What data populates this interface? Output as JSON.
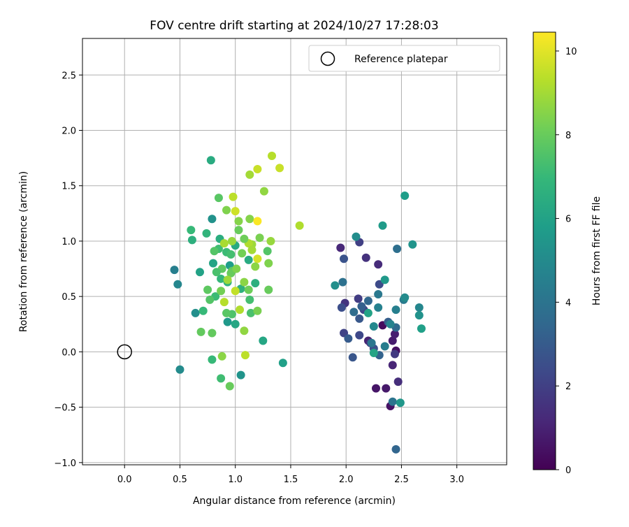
{
  "chart_data": {
    "type": "scatter",
    "title": "FOV centre drift starting at 2024/10/27 17:28:03",
    "xlabel": "Angular distance from reference (arcmin)",
    "ylabel": "Rotation from reference (arcmin)",
    "xlim": [
      -0.38,
      3.45
    ],
    "ylim": [
      -1.02,
      2.83
    ],
    "xticks": [
      0.0,
      0.5,
      1.0,
      1.5,
      2.0,
      2.5,
      3.0
    ],
    "xtick_labels": [
      "0.0",
      "0.5",
      "1.0",
      "1.5",
      "2.0",
      "2.5",
      "3.0"
    ],
    "yticks": [
      -1.0,
      -0.5,
      0.0,
      0.5,
      1.0,
      1.5,
      2.0,
      2.5
    ],
    "ytick_labels": [
      "−1.0",
      "−0.5",
      "0.0",
      "0.5",
      "1.0",
      "1.5",
      "2.0",
      "2.5"
    ],
    "grid": true,
    "legend": {
      "placement": "top-right",
      "entries": [
        "Reference platepar"
      ]
    },
    "reference_point": {
      "x": 0.0,
      "y": 0.0,
      "marker": "open-circle"
    },
    "colorbar": {
      "label": "Hours from first FF file",
      "range": [
        0,
        10.45
      ],
      "ticks": [
        0,
        2,
        4,
        6,
        8,
        10
      ],
      "tick_labels": [
        "0",
        "2",
        "4",
        "6",
        "8",
        "10"
      ],
      "colormap": "viridis",
      "stops": [
        "#440154",
        "#482878",
        "#3e4989",
        "#31688e",
        "#26828e",
        "#1f9e89",
        "#35b779",
        "#6ece58",
        "#b5de2b",
        "#fde725"
      ]
    },
    "series": [
      {
        "points": [
          [
            2.33,
            0.24,
            0.3
          ],
          [
            2.45,
            0.01,
            0.4
          ],
          [
            2.4,
            -0.49,
            0.5
          ],
          [
            2.27,
            -0.33,
            0.6
          ],
          [
            2.36,
            -0.33,
            0.7
          ],
          [
            2.42,
            0.1,
            0.8
          ],
          [
            2.44,
            0.16,
            0.9
          ],
          [
            2.2,
            0.1,
            1.0
          ],
          [
            2.42,
            -0.12,
            1.1
          ],
          [
            1.95,
            0.94,
            1.2
          ],
          [
            2.29,
            0.79,
            1.3
          ],
          [
            2.47,
            -0.27,
            1.4
          ],
          [
            2.18,
            0.85,
            1.5
          ],
          [
            1.99,
            0.44,
            1.6
          ],
          [
            2.22,
            0.08,
            1.7
          ],
          [
            2.44,
            -0.02,
            1.8
          ],
          [
            2.11,
            0.48,
            1.9
          ],
          [
            2.12,
            0.99,
            2.0
          ],
          [
            1.98,
            0.17,
            2.1
          ],
          [
            2.16,
            0.38,
            2.2
          ],
          [
            2.12,
            0.15,
            2.3
          ],
          [
            2.3,
            0.61,
            2.4
          ],
          [
            1.96,
            0.4,
            2.5
          ],
          [
            2.25,
            0.03,
            2.6
          ],
          [
            1.98,
            0.84,
            2.7
          ],
          [
            2.06,
            -0.05,
            2.8
          ],
          [
            2.12,
            0.3,
            2.9
          ],
          [
            2.02,
            0.12,
            3.0
          ],
          [
            2.38,
            0.27,
            3.1
          ],
          [
            2.14,
            0.41,
            3.2
          ],
          [
            2.3,
            -0.03,
            3.3
          ],
          [
            2.45,
            -0.88,
            3.4
          ],
          [
            2.2,
            0.46,
            3.5
          ],
          [
            2.45,
            0.22,
            3.6
          ],
          [
            2.07,
            0.36,
            3.7
          ],
          [
            2.46,
            0.93,
            3.8
          ],
          [
            1.97,
            0.63,
            3.9
          ],
          [
            2.42,
            -0.45,
            4.0
          ],
          [
            2.23,
            0.08,
            4.1
          ],
          [
            2.29,
            0.52,
            4.2
          ],
          [
            2.52,
            0.47,
            4.3
          ],
          [
            2.35,
            0.05,
            4.4
          ],
          [
            2.45,
            0.38,
            4.5
          ],
          [
            2.29,
            0.4,
            4.6
          ],
          [
            2.4,
            0.25,
            4.7
          ],
          [
            2.66,
            0.4,
            4.8
          ],
          [
            2.25,
            0.23,
            4.9
          ],
          [
            2.53,
            0.49,
            5.0
          ],
          [
            2.09,
            1.04,
            5.1
          ],
          [
            1.9,
            0.6,
            5.2
          ],
          [
            2.66,
            0.33,
            5.3
          ],
          [
            2.6,
            0.97,
            5.4
          ],
          [
            2.49,
            -0.46,
            5.5
          ],
          [
            2.35,
            0.65,
            5.6
          ],
          [
            2.33,
            1.14,
            5.7
          ],
          [
            2.53,
            1.41,
            5.8
          ],
          [
            2.68,
            0.21,
            5.9
          ],
          [
            2.2,
            0.35,
            6.0
          ],
          [
            2.25,
            -0.01,
            6.1
          ],
          [
            0.45,
            0.74,
            4.5
          ],
          [
            0.5,
            -0.16,
            5.0
          ],
          [
            0.48,
            0.61,
            4.8
          ],
          [
            0.64,
            0.35,
            5.2
          ],
          [
            1.05,
            -0.21,
            5.4
          ],
          [
            1.43,
            -0.1,
            5.9
          ],
          [
            0.93,
            0.27,
            5.6
          ],
          [
            1.25,
            0.1,
            6.2
          ],
          [
            0.79,
            1.2,
            5.3
          ],
          [
            0.95,
            0.78,
            5.8
          ],
          [
            0.78,
            1.73,
            6.4
          ],
          [
            0.61,
            1.01,
            6.6
          ],
          [
            0.68,
            0.72,
            6.0
          ],
          [
            0.74,
            1.07,
            6.8
          ],
          [
            1.0,
            0.96,
            6.3
          ],
          [
            0.86,
            1.02,
            6.5
          ],
          [
            0.71,
            0.37,
            7.0
          ],
          [
            0.8,
            0.8,
            6.1
          ],
          [
            1.12,
            0.83,
            6.4
          ],
          [
            1.18,
            0.62,
            6.6
          ],
          [
            1.0,
            0.25,
            6.2
          ],
          [
            0.87,
            0.66,
            6.9
          ],
          [
            1.05,
            0.57,
            6.7
          ],
          [
            0.93,
            0.63,
            6.8
          ],
          [
            0.6,
            1.1,
            7.0
          ],
          [
            0.85,
            0.93,
            7.2
          ],
          [
            0.92,
            0.9,
            7.1
          ],
          [
            0.79,
            -0.07,
            7.0
          ],
          [
            0.87,
            -0.24,
            7.2
          ],
          [
            1.13,
            0.47,
            7.3
          ],
          [
            0.82,
            0.5,
            7.1
          ],
          [
            1.14,
            0.35,
            7.4
          ],
          [
            0.96,
            0.88,
            7.3
          ],
          [
            0.97,
            0.34,
            7.5
          ],
          [
            0.81,
            0.91,
            7.6
          ],
          [
            0.85,
            1.39,
            7.7
          ],
          [
            0.77,
            0.47,
            7.6
          ],
          [
            0.75,
            0.56,
            7.8
          ],
          [
            0.88,
            0.75,
            7.8
          ],
          [
            0.97,
            0.73,
            7.8
          ],
          [
            0.69,
            0.18,
            7.9
          ],
          [
            1.3,
            0.56,
            8.0
          ],
          [
            1.12,
            0.56,
            8.1
          ],
          [
            0.79,
            0.17,
            7.9
          ],
          [
            0.87,
            0.55,
            8.2
          ],
          [
            1.03,
            1.1,
            8.0
          ],
          [
            1.06,
            0.89,
            8.2
          ],
          [
            1.2,
            0.37,
            8.3
          ],
          [
            0.96,
            0.71,
            8.0
          ],
          [
            0.92,
            1.28,
            8.4
          ],
          [
            1.13,
            1.2,
            8.5
          ],
          [
            1.3,
            0.8,
            8.4
          ],
          [
            0.95,
            -0.31,
            8.0
          ],
          [
            0.88,
            -0.04,
            8.6
          ],
          [
            1.08,
            0.19,
            8.7
          ],
          [
            1.03,
            1.18,
            8.5
          ],
          [
            1.32,
            1.0,
            8.8
          ],
          [
            1.15,
            0.97,
            8.9
          ],
          [
            1.26,
            1.45,
            8.7
          ],
          [
            1.13,
            1.6,
            9.0
          ],
          [
            0.97,
            1.0,
            8.8
          ],
          [
            1.04,
            0.38,
            9.2
          ],
          [
            1.09,
            -0.03,
            9.4
          ],
          [
            1.08,
            0.63,
            8.6
          ],
          [
            1.01,
            0.75,
            8.4
          ],
          [
            1.0,
            0.55,
            9.5
          ],
          [
            0.9,
            0.45,
            9.3
          ],
          [
            1.33,
            1.77,
            9.3
          ],
          [
            1.4,
            1.66,
            9.6
          ],
          [
            1.58,
            1.14,
            9.2
          ],
          [
            1.2,
            1.65,
            9.6
          ],
          [
            1.2,
            0.84,
            9.8
          ],
          [
            1.2,
            1.18,
            10.4
          ],
          [
            0.98,
            1.4,
            9.4
          ],
          [
            1.0,
            1.27,
            9.7
          ],
          [
            1.12,
            0.98,
            9.2
          ],
          [
            1.15,
            0.92,
            9.0
          ],
          [
            0.9,
            0.98,
            9.1
          ],
          [
            0.93,
            0.65,
            8.9
          ],
          [
            1.22,
            1.03,
            8.3
          ],
          [
            1.29,
            0.91,
            7.6
          ],
          [
            1.08,
            1.02,
            8.1
          ],
          [
            1.18,
            0.77,
            8.6
          ],
          [
            0.83,
            0.72,
            7.4
          ],
          [
            0.92,
            0.35,
            7.7
          ]
        ]
      }
    ]
  }
}
